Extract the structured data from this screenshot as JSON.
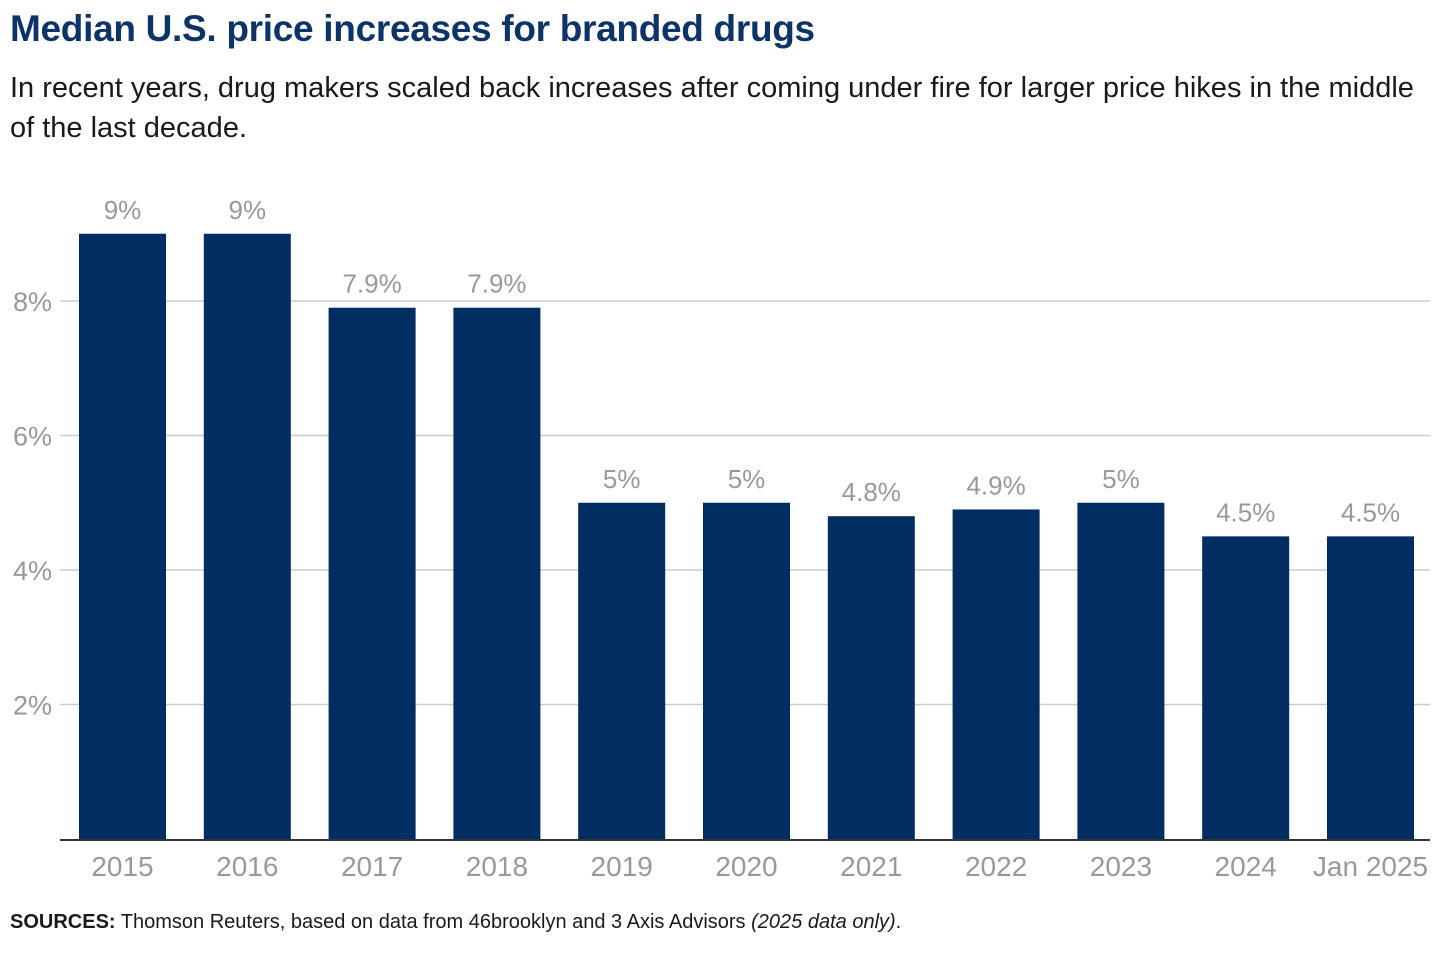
{
  "title": "Median U.S. price increases for branded drugs",
  "subtitle": "In recent years, drug makers scaled back increases after coming under fire for larger price hikes in the middle of the last decade.",
  "sources": {
    "label": "SOURCES:",
    "text": " Thomson Reuters, based on data from 46brooklyn and 3 Axis Advisors ",
    "note": "(2025 data only)",
    "end": "."
  },
  "colors": {
    "bar": "#002d62",
    "title": "#0d3468",
    "label": "#999999",
    "grid": "#cccccc",
    "axis": "#333333"
  },
  "chart_data": {
    "type": "bar",
    "title": "Median U.S. price increases for branded drugs",
    "xlabel": "",
    "ylabel": "",
    "categories": [
      "2015",
      "2016",
      "2017",
      "2018",
      "2019",
      "2020",
      "2021",
      "2022",
      "2023",
      "2024",
      "Jan 2025"
    ],
    "values": [
      9,
      9,
      7.9,
      7.9,
      5,
      5,
      4.8,
      4.9,
      5,
      4.5,
      4.5
    ],
    "data_labels": [
      "9%",
      "9%",
      "7.9%",
      "7.9%",
      "5%",
      "5%",
      "4.8%",
      "4.9%",
      "5%",
      "4.5%",
      "4.5%"
    ],
    "ylim": [
      0,
      9.5
    ],
    "yticks": [
      2,
      4,
      6,
      8
    ],
    "ytick_labels": [
      "2%",
      "4%",
      "6%",
      "8%"
    ],
    "grid": true,
    "legend": "none"
  }
}
